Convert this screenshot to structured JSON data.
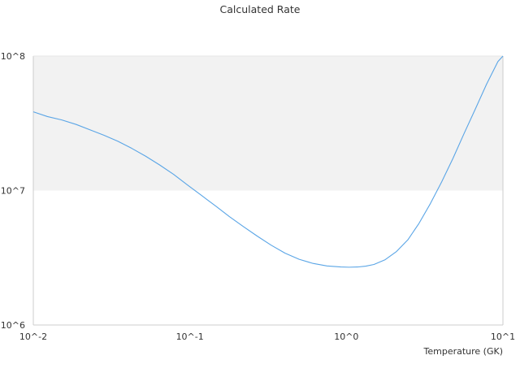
{
  "chart_data": {
    "type": "line",
    "title": "Calculated Rate",
    "xlabel": "Temperature (GK)",
    "ylabel": "",
    "x_scale": "log",
    "y_scale": "log",
    "xlim": [
      0.01,
      10
    ],
    "ylim": [
      1000000,
      100000000
    ],
    "x_ticks": [
      {
        "value": 0.01,
        "label": "10^-2"
      },
      {
        "value": 0.1,
        "label": "10^-1"
      },
      {
        "value": 1,
        "label": "10^0"
      },
      {
        "value": 10,
        "label": "10^1"
      }
    ],
    "y_ticks": [
      {
        "value": 1000000,
        "label": "10^6"
      },
      {
        "value": 10000000,
        "label": "10^7"
      },
      {
        "value": 100000000,
        "label": "10^8"
      }
    ],
    "bands": [
      {
        "from": 10000000,
        "to": 100000000,
        "color": "#f2f2f2"
      }
    ],
    "grid": false,
    "legend": "none",
    "colors": {
      "series": "#5aa5e6",
      "axis": "#cccccc",
      "text": "#333333"
    },
    "series": [
      {
        "x": [
          0.01,
          0.0123,
          0.0152,
          0.0188,
          0.023,
          0.0282,
          0.0346,
          0.0425,
          0.0522,
          0.0641,
          0.0787,
          0.0966,
          0.1186,
          0.1456,
          0.1788,
          0.2195,
          0.2695,
          0.331,
          0.406,
          0.499,
          0.612,
          0.751,
          0.922,
          1.04,
          1.18,
          1.33,
          1.5,
          1.77,
          2.09,
          2.47,
          2.91,
          3.44,
          4.06,
          4.79,
          5.65,
          6.67,
          7.87,
          9.29,
          10.0
        ],
        "y": [
          38500000,
          35500000,
          33500000,
          31000000,
          28300000,
          25800000,
          23300000,
          20600000,
          18000000,
          15500000,
          13200000,
          11000000,
          9200000,
          7700000,
          6400000,
          5400000,
          4580000,
          3920000,
          3420000,
          3080000,
          2870000,
          2750000,
          2700000,
          2690000,
          2700000,
          2740000,
          2820000,
          3060000,
          3520000,
          4300000,
          5700000,
          8000000,
          11600000,
          17300000,
          26600000,
          40500000,
          62000000,
          91000000,
          100000000
        ]
      }
    ]
  }
}
